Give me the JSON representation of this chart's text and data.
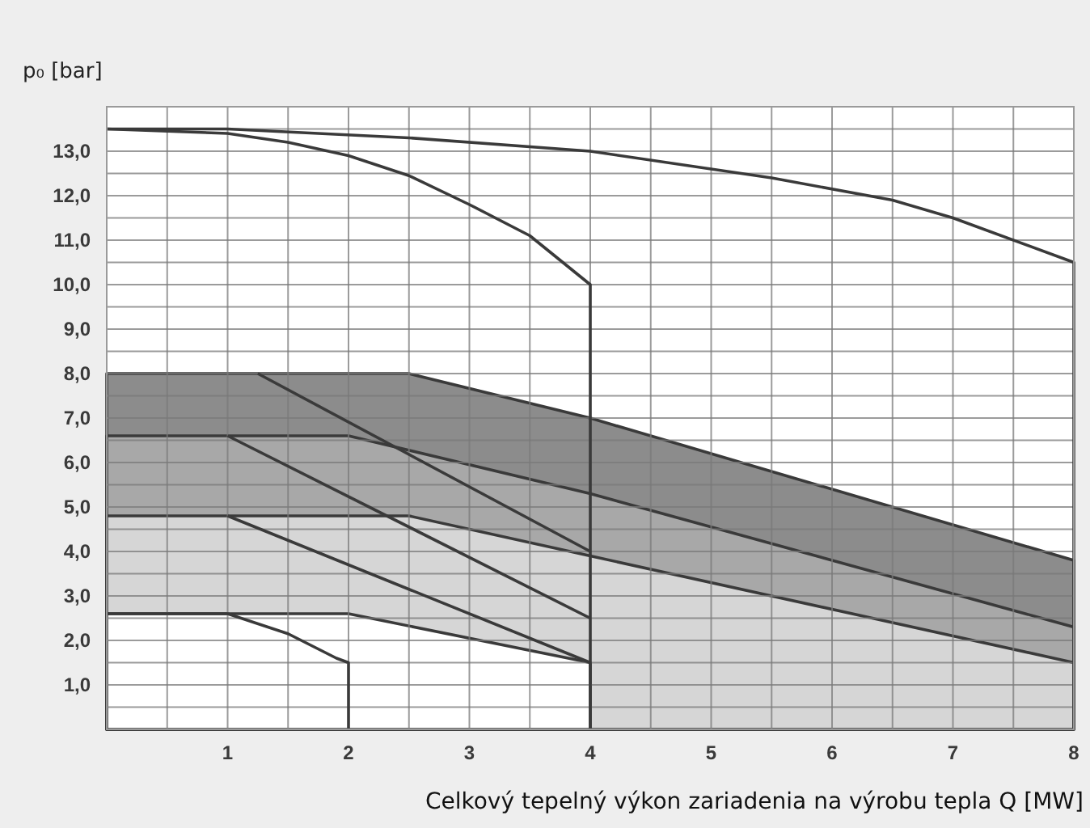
{
  "chart_data": {
    "type": "line",
    "xlabel": "Celkový tepelný výkon zariadenia na výrobu tepla Q [MW]",
    "ylabel": "p₀ [bar]",
    "xlim": [
      0,
      8
    ],
    "ylim": [
      0,
      14
    ],
    "xticks": [
      {
        "value": 0,
        "label": null
      },
      {
        "value": 0.5,
        "label": null
      },
      1,
      {
        "value": 1.5,
        "label": null
      },
      2,
      {
        "value": 2.5,
        "label": null
      },
      3,
      {
        "value": 3.5,
        "label": null
      },
      4,
      {
        "value": 4.5,
        "label": null
      },
      5,
      {
        "value": 5.5,
        "label": null
      },
      6,
      {
        "value": 6.5,
        "label": null
      },
      7,
      {
        "value": 7.5,
        "label": null
      },
      8
    ],
    "yticks": [
      {
        "value": 0.5,
        "label": null
      },
      {
        "value": 1,
        "label": "1,0"
      },
      {
        "value": 1.5,
        "label": null
      },
      {
        "value": 2,
        "label": "2,0"
      },
      {
        "value": 2.5,
        "label": null
      },
      {
        "value": 3,
        "label": "3,0"
      },
      {
        "value": 3.5,
        "label": null
      },
      {
        "value": 4,
        "label": "4,0"
      },
      {
        "value": 4.5,
        "label": null
      },
      {
        "value": 5,
        "label": "5,0"
      },
      {
        "value": 5.5,
        "label": null
      },
      {
        "value": 6,
        "label": "6,0"
      },
      {
        "value": 6.5,
        "label": null
      },
      {
        "value": 7,
        "label": "7,0"
      },
      {
        "value": 7.5,
        "label": null
      },
      {
        "value": 8,
        "label": "8,0"
      },
      {
        "value": 8.5,
        "label": null
      },
      {
        "value": 9,
        "label": "9,0"
      },
      {
        "value": 9.5,
        "label": null
      },
      {
        "value": 10,
        "label": "10,0"
      },
      {
        "value": 10.5,
        "label": null
      },
      {
        "value": 11,
        "label": "11,0"
      },
      {
        "value": 11.5,
        "label": null
      },
      {
        "value": 12,
        "label": "12,0"
      },
      {
        "value": 12.5,
        "label": null
      },
      {
        "value": 13,
        "label": "13,0"
      },
      {
        "value": 13.5,
        "label": null
      },
      {
        "value": 14,
        "label": null
      }
    ],
    "grid": true,
    "line_style": "solid",
    "marker": "none",
    "series": [
      {
        "type": "area",
        "color": "#8c8c8c",
        "x": [
          0,
          2.5,
          4,
          8
        ],
        "values": [
          8,
          8,
          7,
          3.8
        ]
      },
      {
        "type": "area",
        "color": "#a8a8a8",
        "x": [
          0,
          2,
          4,
          8
        ],
        "values": [
          6.6,
          6.6,
          5.3,
          2.3
        ]
      },
      {
        "type": "area",
        "color": "#d6d6d6",
        "x": [
          0,
          2.5,
          4,
          8
        ],
        "values": [
          4.8,
          4.8,
          3.9,
          1.5
        ]
      },
      {
        "type": "area",
        "color": "#ffffff",
        "x": [
          0,
          2,
          4
        ],
        "values": [
          2.6,
          2.6,
          1.5
        ]
      },
      {
        "color": "#3a3a3a",
        "x": [
          0,
          1,
          2.5,
          4,
          5.5,
          6.5,
          7,
          8,
          8
        ],
        "values": [
          13.5,
          13.5,
          13.3,
          13,
          12.4,
          11.9,
          11.5,
          10.5,
          0
        ]
      },
      {
        "color": "#3a3a3a",
        "x": [
          0,
          1,
          1.5,
          2,
          2.5,
          3,
          3.5,
          4,
          4
        ],
        "values": [
          13.5,
          13.4,
          13.2,
          12.9,
          12.45,
          11.8,
          11.1,
          10,
          0
        ]
      },
      {
        "color": "#3a3a3a",
        "x": [
          1.25,
          4
        ],
        "values": [
          8,
          4
        ]
      },
      {
        "color": "#3a3a3a",
        "x": [
          1,
          4
        ],
        "values": [
          6.6,
          2.5
        ]
      },
      {
        "color": "#3a3a3a",
        "x": [
          1,
          4
        ],
        "values": [
          4.8,
          1.5
        ]
      },
      {
        "color": "#3a3a3a",
        "x": [
          0,
          1,
          1.5,
          1.9,
          2,
          2
        ],
        "values": [
          2.6,
          2.6,
          2.15,
          1.6,
          1.5,
          0
        ]
      }
    ]
  }
}
